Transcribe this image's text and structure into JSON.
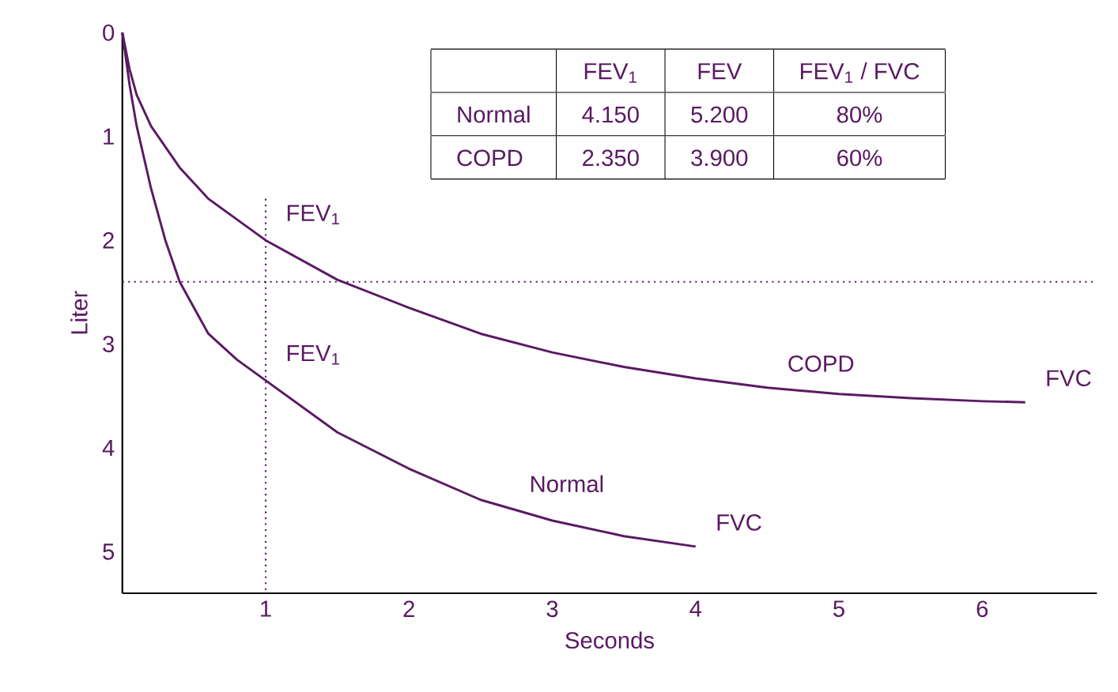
{
  "chart_data": {
    "type": "line",
    "xlabel": "Seconds",
    "ylabel": "Liter",
    "xlim": [
      0,
      6.8
    ],
    "ylim": [
      5.4,
      0
    ],
    "xticks": [
      1,
      2,
      3,
      4,
      5,
      6
    ],
    "yticks": [
      0,
      1,
      2,
      3,
      4,
      5
    ],
    "grid": false,
    "marker": "none",
    "line_style": "solid",
    "series": [
      {
        "color": "#5a1a63",
        "x": [
          0,
          0.05,
          0.1,
          0.2,
          0.3,
          0.4,
          0.6,
          0.8,
          1,
          1.5,
          2,
          2.5,
          3,
          3.5,
          4
        ],
        "values": [
          0,
          0.5,
          0.9,
          1.5,
          2.0,
          2.4,
          2.9,
          3.15,
          3.35,
          3.85,
          4.2,
          4.5,
          4.7,
          4.85,
          4.95
        ]
      },
      {
        "color": "#5a1a63",
        "x": [
          0,
          0.05,
          0.1,
          0.2,
          0.4,
          0.6,
          0.8,
          1,
          1.5,
          2,
          2.5,
          3,
          3.5,
          4,
          4.5,
          5,
          5.5,
          6,
          6.3
        ],
        "values": [
          0,
          0.35,
          0.6,
          0.9,
          1.3,
          1.6,
          1.8,
          2.0,
          2.38,
          2.65,
          2.9,
          3.08,
          3.22,
          3.33,
          3.42,
          3.48,
          3.52,
          3.55,
          3.56
        ]
      }
    ],
    "ref_lines": [
      {
        "axis": "x",
        "value": 1,
        "line_style": "dotted",
        "color": "#5a1a63"
      },
      {
        "axis": "y",
        "value": 2.4,
        "line_style": "dotted",
        "color": "#5a1a63"
      }
    ],
    "annotations": [
      "FEV$_{1}$",
      "FEV",
      "FEV$_{1}$ / FVC",
      "Normal",
      "4.150",
      "5.200",
      "80%",
      "COPD",
      "2.350",
      "3.900",
      "60%",
      {
        "text": "FEV$_{1}$",
        "x": 1,
        "y": 2.0
      },
      {
        "text": "FEV$_{1}$",
        "x": 1,
        "y": 3.35
      },
      {
        "text": "COPD",
        "x": 4.5,
        "y": 3.42
      },
      {
        "text": "Normal",
        "x": 2.7,
        "y": 4.58
      },
      {
        "text": "FVC",
        "x": 6.3,
        "y": 3.56
      },
      {
        "text": "FVC",
        "x": 4,
        "y": 4.95
      }
    ]
  }
}
